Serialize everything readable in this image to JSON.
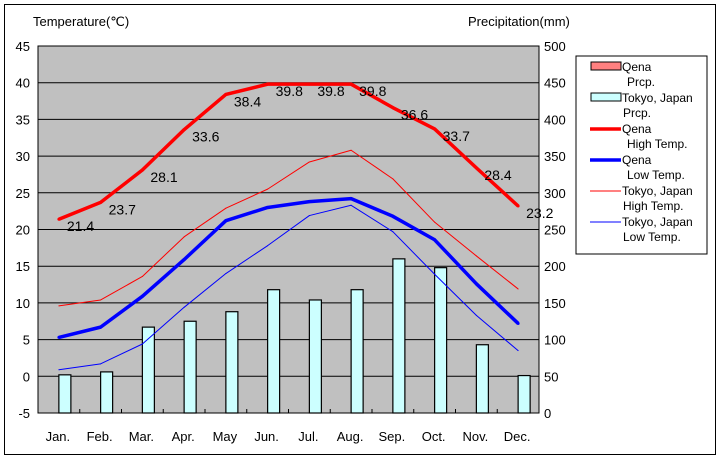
{
  "chart_data": {
    "type": "bar+line",
    "title": "",
    "left_axis_label": "Temperature(℃)",
    "right_axis_label": "Precipitation(mm)",
    "categories": [
      "Jan.",
      "Feb.",
      "Mar.",
      "Apr.",
      "May",
      "Jun.",
      "Jul.",
      "Aug.",
      "Sep.",
      "Oct.",
      "Nov.",
      "Dec."
    ],
    "left_axis": {
      "min": -5,
      "max": 45,
      "step": 5,
      "ticks": [
        "45",
        "40",
        "35",
        "30",
        "25",
        "20",
        "15",
        "10",
        "5",
        "0",
        "-5"
      ]
    },
    "right_axis": {
      "min": 0,
      "max": 500,
      "step": 50,
      "ticks": [
        "500",
        "450",
        "400",
        "350",
        "300",
        "250",
        "200",
        "150",
        "100",
        "50",
        "0"
      ]
    },
    "grid": true,
    "legend_position": "right",
    "series": [
      {
        "name": "Qena Prcp.",
        "legend_lines": [
          "Qena",
          "Prcp."
        ],
        "kind": "bar",
        "axis": "right",
        "color": "#ff8080",
        "values": [
          0,
          0,
          0,
          0,
          0,
          0,
          0,
          0,
          0,
          0,
          0,
          0
        ]
      },
      {
        "name": "Tokyo, Japan Prcp.",
        "legend_lines": [
          "Tokyo, Japan",
          "Prcp."
        ],
        "kind": "bar",
        "axis": "right",
        "color": "#ccffff",
        "values": [
          52,
          56,
          117,
          125,
          138,
          168,
          154,
          168,
          210,
          198,
          93,
          51
        ]
      },
      {
        "name": "Qena High Temp.",
        "legend_lines": [
          "Qena",
          "High Temp."
        ],
        "kind": "line",
        "axis": "left",
        "color": "#ff0000",
        "weight": "thick",
        "values": [
          21.4,
          23.7,
          28.1,
          33.6,
          38.4,
          39.8,
          39.8,
          39.8,
          36.6,
          33.7,
          28.4,
          23.2
        ],
        "labels": [
          "21.4",
          "23.7",
          "28.1",
          "33.6",
          "38.4",
          "39.8",
          "39.8",
          "39.8",
          "36.6",
          "33.7",
          "28.4",
          "23.2"
        ]
      },
      {
        "name": "Qena Low Temp.",
        "legend_lines": [
          "Qena",
          "Low Temp."
        ],
        "kind": "line",
        "axis": "left",
        "color": "#0000ff",
        "weight": "thick",
        "values": [
          5.3,
          6.7,
          10.9,
          15.9,
          21.2,
          23.0,
          23.8,
          24.2,
          21.8,
          18.6,
          12.6,
          7.2
        ]
      },
      {
        "name": "Tokyo, Japan High Temp.",
        "legend_lines": [
          "Tokyo, Japan",
          "High Temp."
        ],
        "kind": "line",
        "axis": "left",
        "color": "#ff0000",
        "weight": "thin",
        "values": [
          9.6,
          10.4,
          13.6,
          19.0,
          22.9,
          25.5,
          29.2,
          30.8,
          26.9,
          21.0,
          16.4,
          11.9
        ]
      },
      {
        "name": "Tokyo, Japan Low Temp.",
        "legend_lines": [
          "Tokyo, Japan",
          "Low Temp."
        ],
        "kind": "line",
        "axis": "left",
        "color": "#0000ff",
        "weight": "thin",
        "values": [
          0.9,
          1.7,
          4.4,
          9.4,
          14.0,
          17.8,
          21.9,
          23.3,
          19.7,
          13.9,
          8.3,
          3.5
        ]
      }
    ]
  }
}
